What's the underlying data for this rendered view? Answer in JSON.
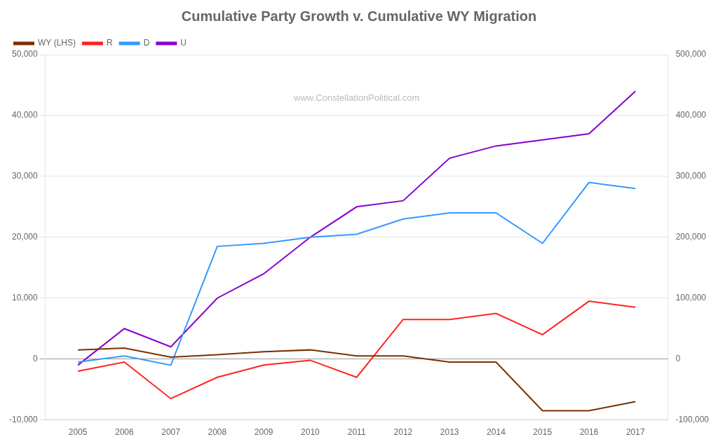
{
  "chart_data": {
    "type": "line",
    "title": "Cumulative Party Growth v. Cumulative WY Migration",
    "annotations": [
      "www.ConstellationPolitical.com"
    ],
    "x": [
      2005,
      2006,
      2007,
      2008,
      2009,
      2010,
      2011,
      2012,
      2013,
      2014,
      2015,
      2016,
      2017
    ],
    "series": [
      {
        "name": "WY (LHS)",
        "color": "#7B3000",
        "values": [
          1500,
          1800,
          300,
          700,
          1200,
          1500,
          500,
          500,
          -500,
          -500,
          -8500,
          -8500,
          -7000
        ]
      },
      {
        "name": "R",
        "color": "#FF2222",
        "values": [
          -2000,
          -500,
          -6500,
          -3000,
          -1000,
          -200,
          -3000,
          6500,
          6500,
          7500,
          4000,
          9500,
          8500
        ]
      },
      {
        "name": "D",
        "color": "#3399FF",
        "values": [
          -500,
          500,
          -1000,
          18500,
          19000,
          20000,
          20500,
          23000,
          24000,
          24000,
          19000,
          29000,
          28000
        ]
      },
      {
        "name": "U",
        "color": "#8800CC",
        "values": [
          -1000,
          5000,
          2000,
          10000,
          14000,
          20000,
          25000,
          26000,
          33000,
          35000,
          36000,
          37000,
          44000
        ]
      }
    ],
    "xlim": [
      2004.3,
      2017.7
    ],
    "xticks": [
      2005,
      2006,
      2007,
      2008,
      2009,
      2010,
      2011,
      2012,
      2013,
      2014,
      2015,
      2016,
      2017
    ],
    "ylim": [
      -10000,
      50000
    ],
    "yticks": [
      {
        "value": -10000,
        "label": "-10,000"
      },
      0,
      {
        "value": 10000,
        "label": "10,000"
      },
      {
        "value": 20000,
        "label": "20,000"
      },
      {
        "value": 30000,
        "label": "30,000"
      },
      {
        "value": 40000,
        "label": "40,000"
      },
      {
        "value": 50000,
        "label": "50,000"
      }
    ],
    "y2lim": [
      -100000,
      500000
    ],
    "y2ticks": [
      {
        "value": -100000,
        "label": "-100,000"
      },
      0,
      {
        "value": 100000,
        "label": "100,000"
      },
      {
        "value": 200000,
        "label": "200,000"
      },
      {
        "value": 300000,
        "label": "300,000"
      },
      {
        "value": 400000,
        "label": "400,000"
      },
      {
        "value": 500000,
        "label": "500,000"
      }
    ],
    "grid": true,
    "legend": "upper left"
  }
}
